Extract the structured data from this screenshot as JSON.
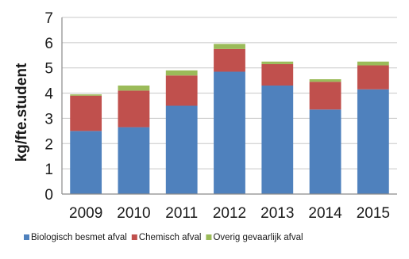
{
  "chart_data": {
    "type": "bar",
    "stacked": true,
    "categories": [
      "2009",
      "2010",
      "2011",
      "2012",
      "2013",
      "2014",
      "2015"
    ],
    "series": [
      {
        "name": "Biologisch besmet afval",
        "color": "#4f81bd",
        "values": [
          2.5,
          2.65,
          3.5,
          4.85,
          4.3,
          3.35,
          4.15
        ]
      },
      {
        "name": "Chemisch afval",
        "color": "#c0504d",
        "values": [
          1.4,
          1.45,
          1.2,
          0.9,
          0.85,
          1.1,
          0.95
        ]
      },
      {
        "name": "Overig gevaarlijk afval",
        "color": "#9bbb59",
        "values": [
          0.05,
          0.2,
          0.2,
          0.2,
          0.1,
          0.1,
          0.15
        ]
      }
    ],
    "ylabel": "kg/fte.student",
    "xlabel": "",
    "ylim": [
      0,
      7
    ],
    "yticks": [
      0,
      1,
      2,
      3,
      4,
      5,
      6,
      7
    ],
    "grid": true,
    "legend_position": "bottom"
  }
}
